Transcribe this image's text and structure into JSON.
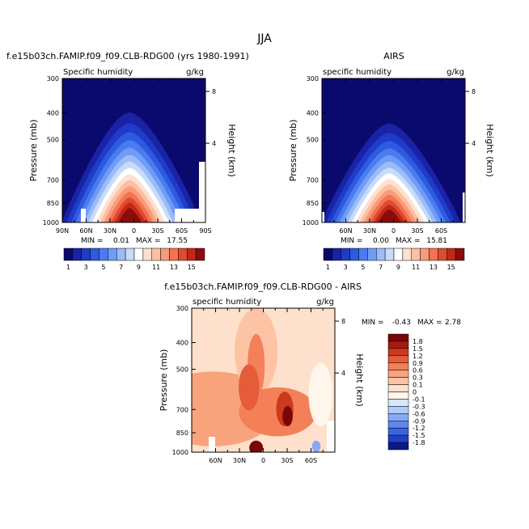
{
  "figure_title": "JJA",
  "colors": {
    "humidity_scale": [
      "#0a0a6e",
      "#1a22a6",
      "#1e3cc8",
      "#2e5ae0",
      "#4a7cf0",
      "#6f9cf6",
      "#9cbcf8",
      "#c8dcfa",
      "#ffffff",
      "#fde0d0",
      "#fcbfa4",
      "#f99a78",
      "#f27452",
      "#e04a30",
      "#c22818",
      "#8c0c0c"
    ],
    "diff_scale": [
      "#0a1a8c",
      "#1f40c8",
      "#3a64e0",
      "#5f88ee",
      "#87aaf4",
      "#b2cbf8",
      "#d8e6fb",
      "#fff6ec",
      "#fde1cc",
      "#fcc4a4",
      "#f9a37c",
      "#f38058",
      "#e55c38",
      "#cc3a1e",
      "#a81a0c",
      "#7a0606"
    ]
  },
  "chart_data": [
    {
      "type": "heatmap",
      "title": "f.e15b03ch.FAMIP.f09_f09.CLB-RDG00 (yrs 1980-1991)",
      "subtitle_left": "Specific humidity",
      "subtitle_right": "g/kg",
      "ylabel": "Pressure (mb)",
      "ylabel_right": "Height (km)",
      "yticks": [
        "300",
        "400",
        "500",
        "700",
        "850",
        "1000"
      ],
      "yticks_right": [
        "8",
        "4"
      ],
      "xticks": [
        "90N",
        "60N",
        "30N",
        "0",
        "30S",
        "60S",
        "90S"
      ],
      "min_label": "MIN =",
      "min_value": "0.01",
      "max_label": "MAX =",
      "max_value": "17.55",
      "colorbar_labels": [
        "1",
        "3",
        "5",
        "7",
        "9",
        "11",
        "13",
        "15"
      ],
      "peak_value": 17.55
    },
    {
      "type": "heatmap",
      "title": "AIRS",
      "subtitle_left": "specific humidity",
      "subtitle_right": "g/kg",
      "ylabel": "Pressure (mb)",
      "ylabel_right": "Height (km)",
      "yticks": [
        "300",
        "400",
        "500",
        "700",
        "850",
        "1000"
      ],
      "yticks_right": [
        "8",
        "4"
      ],
      "xticks": [
        "60N",
        "30N",
        "0",
        "30S",
        "60S"
      ],
      "min_label": "MIN =",
      "min_value": "0.00",
      "max_label": "MAX =",
      "max_value": "15.81",
      "colorbar_labels": [
        "1",
        "3",
        "5",
        "7",
        "9",
        "11",
        "13",
        "15"
      ],
      "peak_value": 15.81
    },
    {
      "type": "heatmap",
      "title": "f.e15b03ch.FAMIP.f09_f09.CLB-RDG00 - AIRS",
      "subtitle_left": "specific humidity",
      "subtitle_right": "g/kg",
      "ylabel": "Pressure (mb)",
      "ylabel_right": "Height (km)",
      "yticks": [
        "300",
        "400",
        "500",
        "700",
        "850",
        "1000"
      ],
      "yticks_right": [
        "8",
        "4"
      ],
      "xticks": [
        "60N",
        "30N",
        "0",
        "30S",
        "60S"
      ],
      "min_label": "MIN =",
      "min_value": "-0.43",
      "max_label": "MAX =",
      "max_value": "2.78",
      "colorbar_labels": [
        "1.8",
        "1.5",
        "1.2",
        "0.9",
        "0.6",
        "0.3",
        "0.1",
        "0",
        "-0.1",
        "-0.3",
        "-0.6",
        "-0.9",
        "-1.2",
        "-1.5",
        "-1.8"
      ]
    }
  ]
}
